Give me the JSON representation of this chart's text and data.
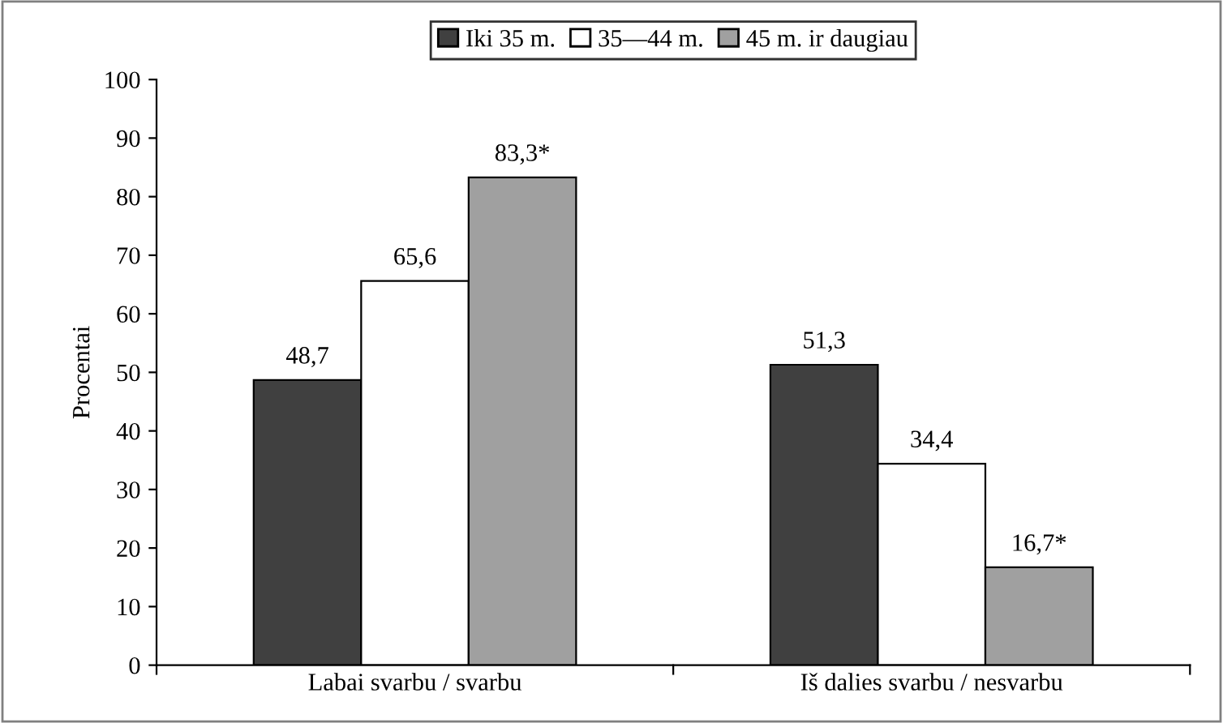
{
  "chart_data": {
    "type": "bar",
    "ylabel": "Procentai",
    "categories": [
      "Labai svarbu / svarbu",
      "Iš dalies svarbu / nesvarbu"
    ],
    "series": [
      {
        "name": "Iki 35 m.",
        "color": "#404040",
        "values": [
          48.7,
          51.3
        ],
        "value_labels": [
          "48,7",
          "51,3"
        ]
      },
      {
        "name": "35—44 m.",
        "color": "#ffffff",
        "values": [
          65.6,
          34.4
        ],
        "value_labels": [
          "65,6",
          "34,4"
        ]
      },
      {
        "name": "45 m. ir daugiau",
        "color": "#a0a0a0",
        "values": [
          83.3,
          16.7
        ],
        "value_labels": [
          "83,3*",
          "16,7*"
        ]
      }
    ],
    "ylim": [
      0,
      100
    ],
    "yticks": [
      0,
      10,
      20,
      30,
      40,
      50,
      60,
      70,
      80,
      90,
      100
    ],
    "grid": false,
    "legend": "top"
  }
}
